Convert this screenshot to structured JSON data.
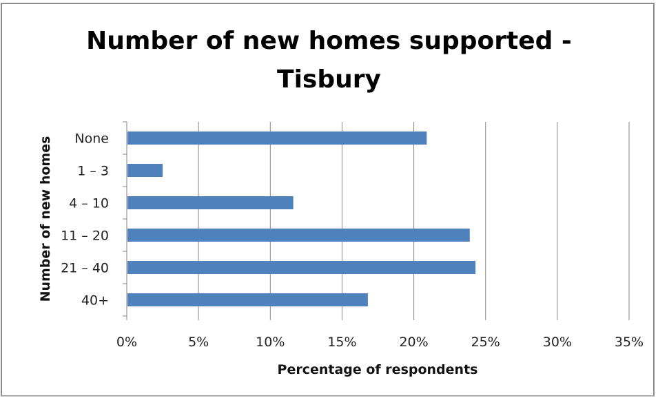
{
  "chart_data": {
    "type": "bar",
    "orientation": "horizontal",
    "title": "Number of new homes supported - Tisbury",
    "xlabel": "Percentage of respondents",
    "ylabel": "Number of new homes",
    "categories": [
      "None",
      "1 – 3",
      "4 – 10",
      "11 – 20",
      "21 – 40",
      "40+"
    ],
    "values": [
      20.9,
      2.5,
      11.6,
      23.9,
      24.3,
      16.8
    ],
    "xlim": [
      0,
      35
    ],
    "x_ticks": [
      "0%",
      "5%",
      "10%",
      "15%",
      "20%",
      "25%",
      "30%",
      "35%"
    ],
    "grid": "vertical",
    "legend": "none",
    "bar_color": "#4f81bd"
  }
}
